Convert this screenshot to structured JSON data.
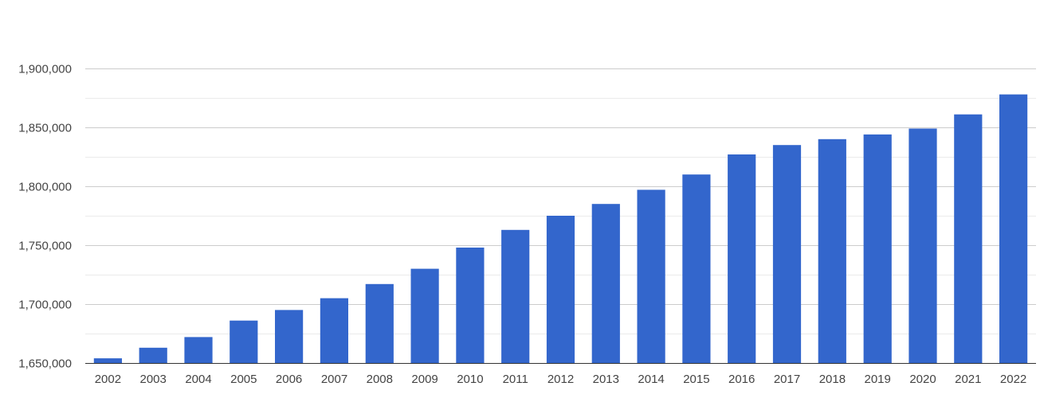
{
  "chart_data": {
    "type": "bar",
    "title": "",
    "xlabel": "",
    "ylabel": "",
    "ylim": [
      1650000,
      1900000
    ],
    "y_ticks": [
      1650000,
      1700000,
      1750000,
      1800000,
      1850000,
      1900000
    ],
    "y_tick_labels": [
      "1,650,000",
      "1,700,000",
      "1,750,000",
      "1,800,000",
      "1,850,000",
      "1,900,000"
    ],
    "grid": true,
    "legend": "none",
    "bar_color": "#3366cc",
    "categories": [
      "2002",
      "2003",
      "2004",
      "2005",
      "2006",
      "2007",
      "2008",
      "2009",
      "2010",
      "2011",
      "2012",
      "2013",
      "2014",
      "2015",
      "2016",
      "2017",
      "2018",
      "2019",
      "2020",
      "2021",
      "2022"
    ],
    "values": [
      1654000,
      1663000,
      1672000,
      1686000,
      1695000,
      1705000,
      1717000,
      1730000,
      1748000,
      1763000,
      1775000,
      1785000,
      1797000,
      1810000,
      1827000,
      1835000,
      1840000,
      1844000,
      1849000,
      1861000,
      1878000
    ]
  }
}
